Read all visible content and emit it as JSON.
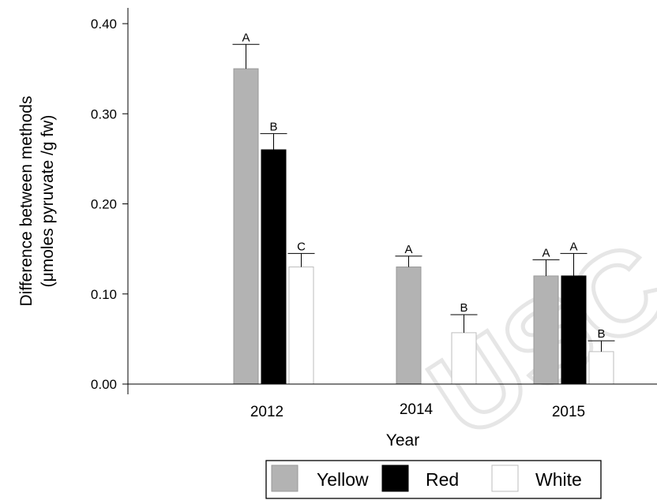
{
  "chart_data": {
    "type": "bar",
    "title": "",
    "xlabel": "Year",
    "ylabel_line1": "Difference between methods",
    "ylabel_line2": "(μmoles pyruvate /g fw)",
    "ylim": [
      0,
      0.4
    ],
    "yticks": [
      "0.00",
      "0.10",
      "0.20",
      "0.30",
      "0.40"
    ],
    "categories": [
      "2012",
      "2014",
      "2015"
    ],
    "legend_position": "bottom",
    "series": [
      {
        "name": "Yellow",
        "color": "#b3b3b3",
        "values": [
          0.35,
          0.13,
          0.12
        ],
        "errors": [
          0.027,
          0.012,
          0.018
        ],
        "letters": [
          "A",
          "A",
          "A"
        ]
      },
      {
        "name": "Red",
        "color": "#000000",
        "values": [
          0.26,
          null,
          0.12
        ],
        "errors": [
          0.018,
          null,
          0.025
        ],
        "letters": [
          "B",
          null,
          "A"
        ]
      },
      {
        "name": "White",
        "color": "#ffffff",
        "values": [
          0.13,
          0.057,
          0.036
        ],
        "errors": [
          0.015,
          0.02,
          0.012
        ],
        "letters": [
          "C",
          "B",
          "B"
        ]
      }
    ],
    "watermark": "USC"
  }
}
